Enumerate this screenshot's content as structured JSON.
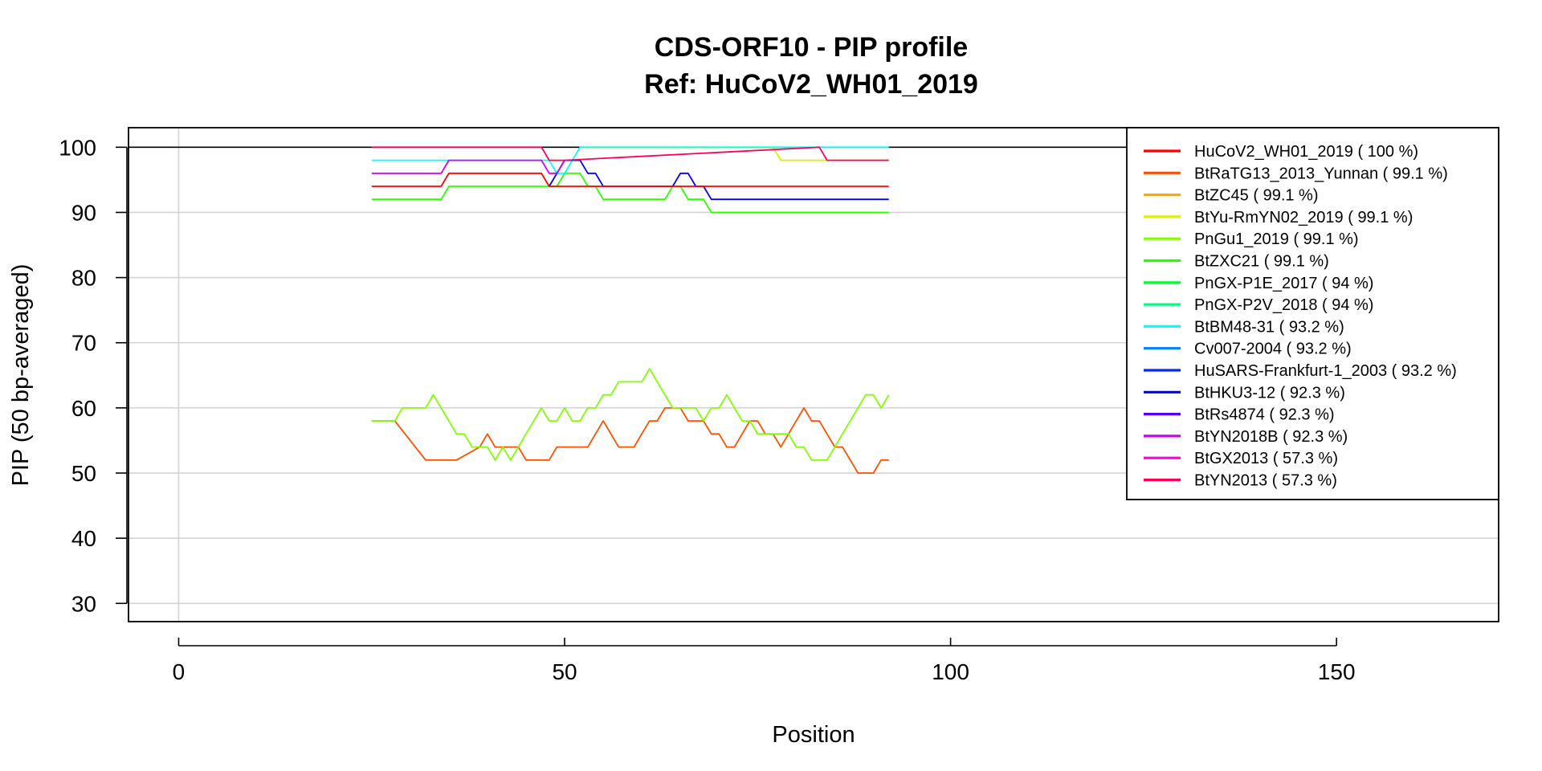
{
  "chart_data": {
    "type": "line",
    "title": "CDS-ORF10 - PIP profile",
    "subtitle": "Ref: HuCoV2_WH01_2019",
    "xlabel": "Position",
    "ylabel": "PIP (50 bp-averaged)",
    "xlim": [
      -6.5,
      171
    ],
    "ylim": [
      27.2,
      103
    ],
    "xticks": [
      0,
      50,
      100,
      150
    ],
    "yticks": [
      30,
      40,
      50,
      60,
      70,
      80,
      90,
      100
    ],
    "grid": true,
    "reference_line": 100,
    "legend_position": "top-right",
    "series": [
      {
        "name": "HuCoV2_WH01_2019 ( 100 %)",
        "color": "#FF0000",
        "x": [],
        "y": []
      },
      {
        "name": "BtRaTG13_2013_Yunnan ( 99.1 %)",
        "color": "#FF5000",
        "x": [
          25,
          28,
          32,
          33,
          36,
          39,
          40,
          41,
          42,
          44,
          45,
          46,
          48,
          49,
          50,
          51,
          52,
          53,
          54,
          55,
          56,
          57,
          58,
          59,
          60,
          61,
          62,
          63,
          64,
          65,
          66,
          67,
          68,
          69,
          70,
          71,
          72,
          73,
          74,
          75,
          76,
          77,
          78,
          79,
          80,
          81,
          82,
          83,
          84,
          85,
          86,
          87,
          88,
          89,
          90,
          91,
          92
        ],
        "y": [
          58,
          58,
          52,
          52,
          52,
          54,
          56,
          54,
          54,
          54,
          52,
          52,
          52,
          54,
          54,
          54,
          54,
          54,
          56,
          58,
          56,
          54,
          54,
          54,
          56,
          58,
          58,
          60,
          60,
          60,
          58,
          58,
          58,
          56,
          56,
          54,
          54,
          56,
          58,
          58,
          56,
          56,
          54,
          56,
          58,
          60,
          58,
          58,
          56,
          54,
          54,
          52,
          50,
          50,
          50,
          52,
          52
        ]
      },
      {
        "name": "BtZC45 ( 99.1 %)",
        "color": "#FFA800",
        "x": [],
        "y": []
      },
      {
        "name": "BtYu-RmYN02_2019 ( 99.1 %)",
        "color": "#DDF000",
        "x": [
          52,
          77,
          78,
          92
        ],
        "y": [
          100,
          100,
          98,
          98
        ]
      },
      {
        "name": "PnGu1_2019 ( 99.1 %)",
        "color": "#80FF00",
        "x": [
          25,
          28,
          29,
          31,
          32,
          33,
          35,
          36,
          37,
          38,
          40,
          41,
          42,
          43,
          44,
          46,
          47,
          48,
          49,
          50,
          51,
          52,
          53,
          54,
          55,
          56,
          57,
          58,
          59,
          60,
          61,
          62,
          63,
          64,
          65,
          66,
          67,
          68,
          69,
          70,
          71,
          72,
          73,
          74,
          75,
          76,
          77,
          78,
          79,
          80,
          81,
          82,
          83,
          84,
          85,
          86,
          87,
          88,
          89,
          90,
          91,
          92
        ],
        "y": [
          58,
          58,
          60,
          60,
          60,
          62,
          58,
          56,
          56,
          54,
          54,
          52,
          54,
          52,
          54,
          58,
          60,
          58,
          58,
          60,
          58,
          58,
          60,
          60,
          62,
          62,
          64,
          64,
          64,
          64,
          66,
          64,
          62,
          60,
          60,
          60,
          60,
          58,
          60,
          60,
          62,
          60,
          58,
          58,
          56,
          56,
          56,
          56,
          56,
          54,
          54,
          52,
          52,
          52,
          54,
          56,
          58,
          60,
          62,
          62,
          60,
          62
        ]
      },
      {
        "name": "BtZXC21 ( 99.1 %)",
        "color": "#2AFF00",
        "x": [
          25,
          34,
          35,
          47,
          48,
          49,
          50,
          51,
          52,
          53,
          54,
          55,
          56,
          63,
          64,
          65,
          66,
          67,
          68,
          69,
          92
        ],
        "y": [
          92,
          92,
          94,
          94,
          94,
          94,
          96,
          96,
          96,
          94,
          94,
          92,
          92,
          92,
          94,
          94,
          92,
          92,
          92,
          90,
          90
        ]
      },
      {
        "name": "PnGX-P1E_2017 ( 94 %)",
        "color": "#00FF2A",
        "x": [],
        "y": []
      },
      {
        "name": "PnGX-P2V_2018 ( 94 %)",
        "color": "#00FF80",
        "x": [],
        "y": []
      },
      {
        "name": "BtBM48-31 ( 93.2 %)",
        "color": "#00FFFF",
        "x": [
          25,
          48,
          49,
          50,
          51,
          52,
          92
        ],
        "y": [
          98,
          98,
          96,
          96,
          98,
          100,
          100
        ]
      },
      {
        "name": "Cv007-2004 ( 93.2 %)",
        "color": "#0080FF",
        "x": [],
        "y": []
      },
      {
        "name": "HuSARS-Frankfurt-1_2003 ( 93.2 %)",
        "color": "#0028FF",
        "x": [],
        "y": []
      },
      {
        "name": "BtHKU3-12 ( 92.3 %)",
        "color": "#0000FF",
        "x": [
          48,
          49,
          50,
          52,
          53,
          54,
          55,
          64,
          65,
          66,
          67,
          68,
          69,
          92
        ],
        "y": [
          94,
          96,
          98,
          98,
          96,
          96,
          94,
          94,
          96,
          96,
          94,
          94,
          92,
          92
        ]
      },
      {
        "name": "BtRs4874 ( 92.3 %)",
        "color": "#5000FF",
        "x": [],
        "y": []
      },
      {
        "name": "BtYN2018B ( 92.3 %)",
        "color": "#CC00FF",
        "x": [
          25,
          34,
          35,
          47,
          48,
          49,
          50
        ],
        "y": [
          96,
          96,
          98,
          98,
          96,
          96,
          98
        ]
      },
      {
        "name": "BtGX2013 ( 57.3 %)",
        "color": "#FF00CC",
        "x": [],
        "y": []
      },
      {
        "name": "BtYN2013 ( 57.3 %)",
        "color": "#FF0050",
        "x": [
          25,
          47,
          48,
          50,
          83,
          84,
          92
        ],
        "y": [
          100,
          100,
          98,
          98,
          100,
          98,
          98
        ]
      }
    ],
    "red_series": {
      "x": [
        25,
        34,
        35,
        47,
        48,
        92
      ],
      "y": [
        94,
        94,
        96,
        96,
        94,
        94
      ]
    }
  }
}
